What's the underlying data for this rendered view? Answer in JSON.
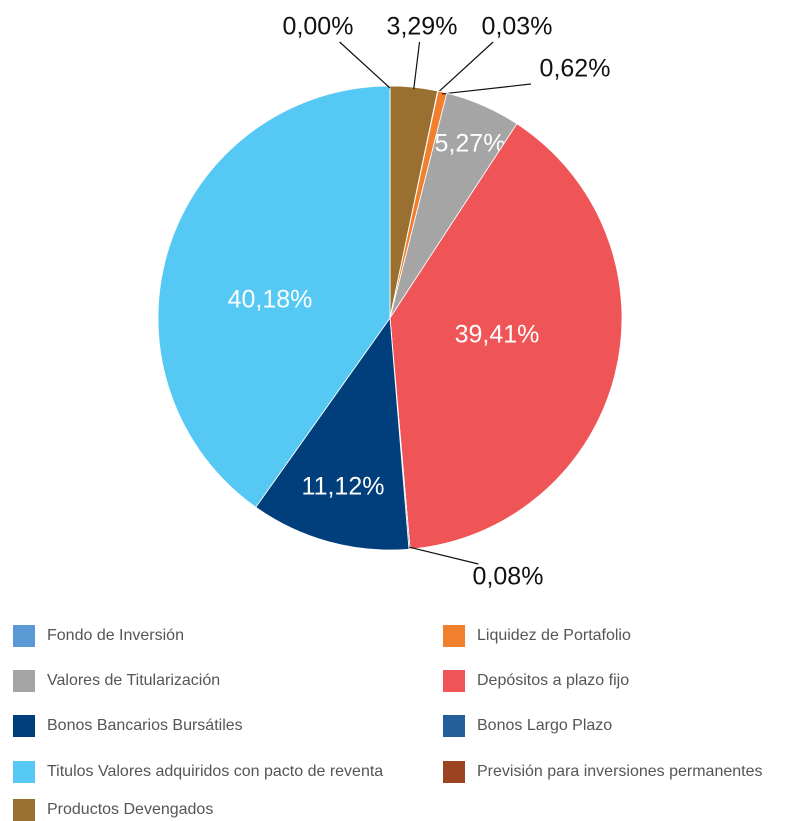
{
  "chart_data": {
    "type": "pie",
    "categories": [
      "Productos Devengados",
      "Previsión para inversiones permanentes",
      "Liquidez de Portafolio",
      "Valores de Titularización",
      "Depósitos a plazo fijo",
      "Bonos Largo Plazo",
      "Bonos Bancarios Bursátiles",
      "Titulos Valores adquiridos con pacto de reventa",
      "Fondo de Inversión"
    ],
    "values": [
      3.29,
      0.03,
      0.62,
      5.27,
      39.41,
      0.08,
      11.12,
      40.18,
      0
    ],
    "value_labels": [
      "3,29%",
      "0,03%",
      "0,62%",
      "5,27%",
      "39,41%",
      "0,08%",
      "11,12%",
      "40,18%",
      "0,00%"
    ],
    "colors": [
      "#9a7030",
      "#9c4321",
      "#f07f2e",
      "#a5a5a5",
      "#ef5556",
      "#255f99",
      "#003f7c",
      "#55c8f4",
      "#5b9bd5"
    ]
  }
}
